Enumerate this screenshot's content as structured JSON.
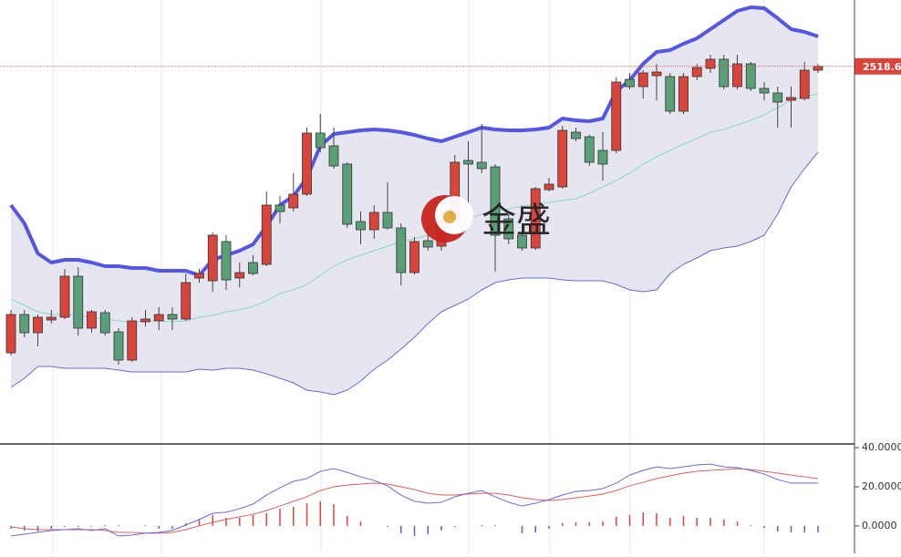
{
  "watermark": "金盛",
  "chart_data": [
    {
      "type": "candlestick",
      "ylim": [
        2312.5,
        2555
      ],
      "up_color": "#d9453b",
      "down_color": "#5b9f78",
      "open": [
        2361.5,
        2382.5,
        2372.5,
        2379.5,
        2381,
        2403.5,
        2375,
        2383.5,
        2373,
        2357.5,
        2378.5,
        2379,
        2382.5,
        2380,
        2402.5,
        2401,
        2422.5,
        2402.5,
        2411,
        2410,
        2442.5,
        2441,
        2448.5,
        2482,
        2475,
        2465,
        2433.5,
        2429,
        2438.5,
        2430,
        2405.5,
        2423,
        2420,
        2435,
        2467,
        2466,
        2463.5,
        2435,
        2426,
        2419,
        2451,
        2452.5,
        2482.5,
        2480,
        2472.5,
        2472.5,
        2511.5,
        2507.5,
        2513.5,
        2513,
        2494,
        2513,
        2517.5,
        2522.5,
        2507.5,
        2520,
        2506.5,
        2504,
        2500,
        2501,
        2516.5
      ],
      "high": [
        2385,
        2385,
        2382.5,
        2385,
        2407.5,
        2408.5,
        2385,
        2385,
        2375,
        2381,
        2385,
        2386.5,
        2386.5,
        2405,
        2407.5,
        2427.5,
        2426,
        2411,
        2415,
        2450,
        2447.5,
        2460,
        2485,
        2492.5,
        2485,
        2466,
        2439,
        2442.5,
        2455,
        2432.5,
        2425,
        2430,
        2442.5,
        2470,
        2477.5,
        2487,
        2465,
        2437.5,
        2432.5,
        2452.5,
        2457.5,
        2486,
        2485,
        2481,
        2482.5,
        2512.5,
        2515,
        2516.5,
        2520,
        2515,
        2515,
        2520,
        2525,
        2525,
        2525,
        2521,
        2510,
        2507.5,
        2507.5,
        2521,
        2520
      ],
      "low": [
        2360,
        2370,
        2365,
        2377.5,
        2380,
        2371,
        2372.5,
        2371,
        2355,
        2356.5,
        2376,
        2374,
        2374,
        2379,
        2400,
        2395,
        2396,
        2397.5,
        2404,
        2409,
        2432.5,
        2439,
        2447.5,
        2471.5,
        2462.5,
        2430,
        2421,
        2424,
        2429,
        2398.5,
        2404.5,
        2417.5,
        2417.5,
        2432.5,
        2440,
        2460,
        2406,
        2421,
        2417.5,
        2418,
        2450,
        2451.5,
        2477.5,
        2464,
        2456,
        2471,
        2506,
        2501,
        2500,
        2492.5,
        2492.5,
        2511,
        2515,
        2506,
        2506,
        2505,
        2500,
        2485,
        2485,
        2500,
        2515
      ],
      "close": [
        2382.5,
        2372.5,
        2381,
        2381,
        2403.5,
        2375,
        2384,
        2372.5,
        2357.5,
        2379,
        2380,
        2382.5,
        2380,
        2400,
        2405,
        2426,
        2401.5,
        2405.5,
        2405,
        2442.5,
        2439,
        2448.5,
        2482,
        2474,
        2464,
        2432,
        2429,
        2438.5,
        2430,
        2405.5,
        2422.5,
        2419.5,
        2435,
        2466,
        2465,
        2462.5,
        2426,
        2424,
        2419,
        2451.5,
        2454,
        2483.5,
        2479,
        2466,
        2465,
        2510,
        2507.5,
        2515,
        2515.5,
        2494,
        2513,
        2518,
        2522.5,
        2507.5,
        2520,
        2506.5,
        2504,
        2499,
        2501.5,
        2516.5,
        2518.61
      ],
      "upper": [
        2442.5,
        2432.5,
        2416,
        2411,
        2412.5,
        2412.5,
        2411,
        2409,
        2409,
        2408,
        2408,
        2406.5,
        2406.5,
        2406.5,
        2404,
        2412.5,
        2415,
        2417.5,
        2421,
        2431,
        2442.5,
        2447.5,
        2457.5,
        2475,
        2481.5,
        2482.5,
        2483.5,
        2484,
        2483.5,
        2482.5,
        2481,
        2479,
        2477.5,
        2480,
        2482.5,
        2485,
        2484,
        2483.5,
        2483.5,
        2484,
        2485,
        2490,
        2489,
        2488.5,
        2490,
        2505,
        2511,
        2520,
        2526.5,
        2527.5,
        2531,
        2534,
        2539,
        2544,
        2549,
        2551,
        2550.5,
        2545,
        2539,
        2537.5,
        2535
      ],
      "middle": [
        2391,
        2387.5,
        2384,
        2382.5,
        2382.5,
        2382,
        2381,
        2380,
        2379,
        2378.5,
        2379,
        2379,
        2378.5,
        2379,
        2381,
        2382,
        2384,
        2385,
        2387,
        2390,
        2394,
        2396,
        2399,
        2404,
        2409,
        2412.5,
        2415,
        2417.5,
        2420,
        2422.5,
        2424,
        2426,
        2427.5,
        2431,
        2435,
        2437.5,
        2439,
        2440.5,
        2442,
        2443,
        2444,
        2445,
        2446,
        2449,
        2452.5,
        2456,
        2460,
        2465,
        2469,
        2472.5,
        2476,
        2479,
        2482.5,
        2484,
        2486.5,
        2489,
        2492,
        2496,
        2500,
        2502,
        2503.5
      ],
      "lower": [
        2342.5,
        2347.5,
        2354,
        2354,
        2353,
        2353,
        2353,
        2353,
        2352,
        2351,
        2351,
        2351,
        2351,
        2351,
        2352.5,
        2352,
        2353,
        2353,
        2352,
        2350,
        2347.5,
        2345,
        2341,
        2340,
        2338.5,
        2341,
        2346,
        2352.5,
        2357.5,
        2363.5,
        2370,
        2377.5,
        2384,
        2387.5,
        2391,
        2396,
        2400,
        2401.5,
        2402.5,
        2402.5,
        2402.5,
        2401.5,
        2401,
        2401,
        2401,
        2399,
        2396,
        2395,
        2396,
        2405,
        2410,
        2413.5,
        2417.5,
        2419,
        2420,
        2422.5,
        2426,
        2437.5,
        2452.5,
        2462.5,
        2471.5
      ],
      "upper_color": "#5656e4",
      "middle_color": "#8fd6c6",
      "lower_color": "#6a6ad8",
      "band_fill": "#e6e6f1",
      "current_price": 2518.61
    },
    {
      "type": "macd",
      "ylim": [
        -14,
        41.9
      ],
      "yticks": [
        {
          "value": 40,
          "label": "40.0000"
        },
        {
          "value": 20,
          "label": "20.0000"
        },
        {
          "value": 0,
          "label": "0.0000"
        }
      ],
      "dif": [
        -5.1,
        -4.2,
        -3.3,
        -2.3,
        -1.9,
        -1.4,
        -2.3,
        -1.4,
        -5.1,
        -4.7,
        -3.7,
        -3.3,
        -2.3,
        0.5,
        3.3,
        6.5,
        7,
        8.8,
        11.2,
        15.8,
        19.5,
        22.8,
        24.2,
        27.9,
        29.3,
        27.4,
        25.1,
        23.3,
        20.5,
        15.8,
        12.6,
        11.6,
        12.1,
        14.9,
        16.7,
        18.1,
        14.9,
        12.1,
        10.2,
        11.6,
        13.5,
        15.8,
        17.7,
        18.1,
        19.1,
        21.9,
        26,
        28.4,
        30.2,
        29.3,
        30.2,
        31.2,
        31.6,
        30.2,
        29.8,
        28.4,
        26.5,
        23.7,
        21.9,
        21.9,
        21.9
      ],
      "dea": [
        -0.5,
        -1.4,
        -1.9,
        -1.9,
        -1.9,
        -1.9,
        -1.9,
        -2.3,
        -3.3,
        -3.3,
        -3.7,
        -3.7,
        -3.3,
        -1.9,
        0,
        1.9,
        3.3,
        4.7,
        6,
        7.9,
        10.2,
        12.6,
        14.9,
        18.1,
        20,
        20.9,
        21.4,
        21.9,
        21.4,
        20,
        18.6,
        16.7,
        15.8,
        15.8,
        16.3,
        16.7,
        16.7,
        15.8,
        14.4,
        13.5,
        13,
        13.5,
        14.4,
        15.3,
        16.3,
        18.1,
        20.5,
        22.3,
        24.2,
        25.6,
        27,
        27.9,
        28.4,
        28.8,
        29.3,
        28.8,
        27.9,
        27,
        26,
        25.1,
        24.2
      ],
      "hist": [
        -1.4,
        -2.3,
        -2.8,
        -1.4,
        -0.5,
        -0.5,
        -0.5,
        0.5,
        0.5,
        0,
        0.5,
        -1.4,
        -1.4,
        1.4,
        3.3,
        5.6,
        4.2,
        4.2,
        5.6,
        6.5,
        8.8,
        9.8,
        11.6,
        12.6,
        11.2,
        5.1,
        2.3,
        0,
        -0.5,
        -3.7,
        -5.1,
        -4.2,
        -2.3,
        -0.5,
        0,
        0.5,
        0.5,
        0,
        -3.7,
        -3.3,
        -1.4,
        1.4,
        1.9,
        1.9,
        2.3,
        4.7,
        5.6,
        7,
        6.5,
        4.2,
        5.1,
        4.2,
        4.2,
        3.3,
        2.3,
        0.5,
        -0.9,
        -2.8,
        -3.3,
        -3.3,
        -3.3
      ],
      "dif_color": "#6a6ae0",
      "dea_color": "#e0605a",
      "pos_color": "#e0453b",
      "neg_color": "#5a5ae0"
    }
  ]
}
